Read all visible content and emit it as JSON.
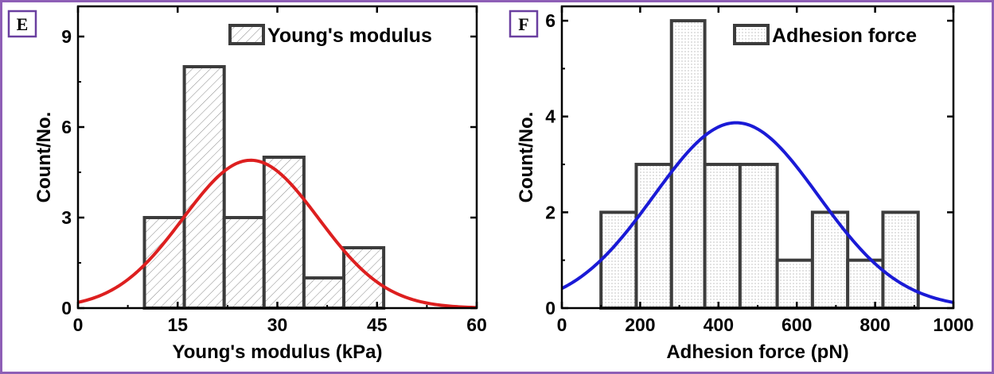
{
  "chart_data": [
    {
      "type": "bar",
      "panel_label": "E",
      "xlabel": "Young's modulus (kPa)",
      "ylabel": "Count/No.",
      "xlim": [
        0,
        60
      ],
      "ylim": [
        0,
        10
      ],
      "x_ticks": [
        0,
        15,
        30,
        45,
        60
      ],
      "y_ticks": [
        0,
        3,
        6,
        9
      ],
      "bins": [
        {
          "start": 10,
          "end": 16,
          "count": 3
        },
        {
          "start": 16,
          "end": 22,
          "count": 8
        },
        {
          "start": 22,
          "end": 28,
          "count": 3
        },
        {
          "start": 28,
          "end": 34,
          "count": 5
        },
        {
          "start": 34,
          "end": 40,
          "count": 1
        },
        {
          "start": 40,
          "end": 46,
          "count": 2
        }
      ],
      "fit_curve": {
        "type": "gaussian",
        "mean": 26,
        "sd": 10.2,
        "peak": 4.9,
        "color": "#dd1f1f"
      },
      "series": [
        {
          "name": "Young's modulus",
          "pattern": "hatch"
        }
      ],
      "legend_position": "top-right",
      "grid": false
    },
    {
      "type": "bar",
      "panel_label": "F",
      "xlabel": "Adhesion force (pN)",
      "ylabel": "Count/No.",
      "xlim": [
        0,
        1000
      ],
      "ylim": [
        0,
        6.3
      ],
      "x_ticks": [
        0,
        200,
        400,
        600,
        800,
        1000
      ],
      "y_ticks": [
        0,
        2,
        4,
        6
      ],
      "bins": [
        {
          "start": 100,
          "end": 190,
          "count": 2
        },
        {
          "start": 190,
          "end": 280,
          "count": 3
        },
        {
          "start": 280,
          "end": 365,
          "count": 6
        },
        {
          "start": 365,
          "end": 455,
          "count": 3
        },
        {
          "start": 455,
          "end": 550,
          "count": 3
        },
        {
          "start": 550,
          "end": 640,
          "count": 1
        },
        {
          "start": 640,
          "end": 730,
          "count": 2
        },
        {
          "start": 730,
          "end": 820,
          "count": 1
        },
        {
          "start": 820,
          "end": 910,
          "count": 2
        }
      ],
      "fit_curve": {
        "type": "gaussian",
        "mean": 445,
        "sd": 210,
        "peak": 3.87,
        "color": "#1a1ad6"
      },
      "series": [
        {
          "name": "Adhesion force",
          "pattern": "dots"
        }
      ],
      "legend_position": "top-right",
      "grid": false
    }
  ]
}
